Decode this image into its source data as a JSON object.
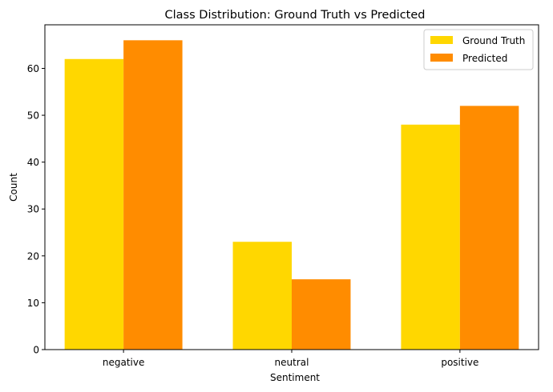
{
  "chart_data": {
    "type": "bar",
    "title": "Class Distribution: Ground Truth vs Predicted",
    "xlabel": "Sentiment",
    "ylabel": "Count",
    "categories": [
      "negative",
      "neutral",
      "positive"
    ],
    "series": [
      {
        "name": "Ground Truth",
        "values": [
          62,
          23,
          48
        ],
        "color": "#FFD700"
      },
      {
        "name": "Predicted",
        "values": [
          66,
          15,
          52
        ],
        "color": "#FF8C00"
      }
    ],
    "ylim": [
      0,
      69.3
    ],
    "yticks": [
      0,
      10,
      20,
      30,
      40,
      50,
      60
    ],
    "grid": false,
    "legend_position": "top-right"
  }
}
